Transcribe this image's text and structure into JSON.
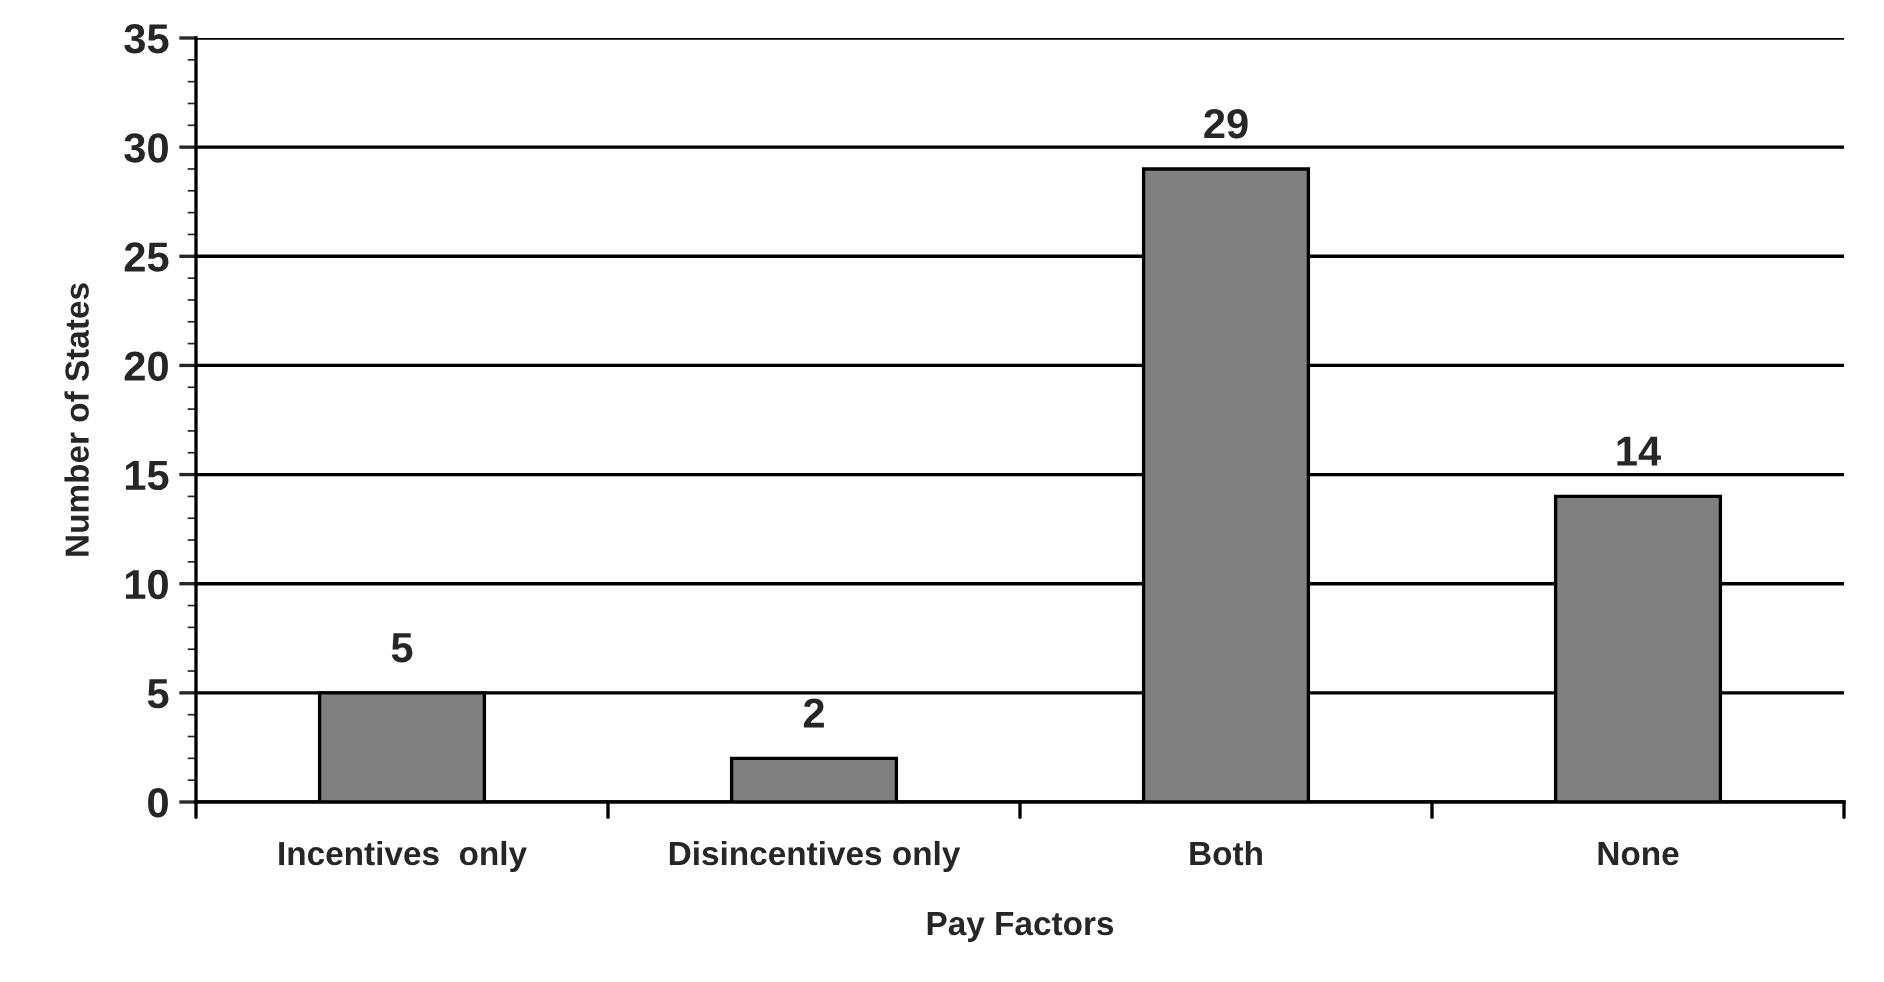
{
  "chart_data": {
    "type": "bar",
    "xlabel": "Pay Factors",
    "ylabel": "Number of States",
    "categories": [
      "Incentives  only",
      "Disincentives only",
      "Both",
      "None"
    ],
    "values": [
      5,
      2,
      29,
      14
    ],
    "color": "#808080",
    "ylim": [
      0,
      35
    ],
    "yticks": [
      0,
      5,
      10,
      15,
      20,
      25,
      30,
      35
    ],
    "grid": "y",
    "data_labels": true
  }
}
